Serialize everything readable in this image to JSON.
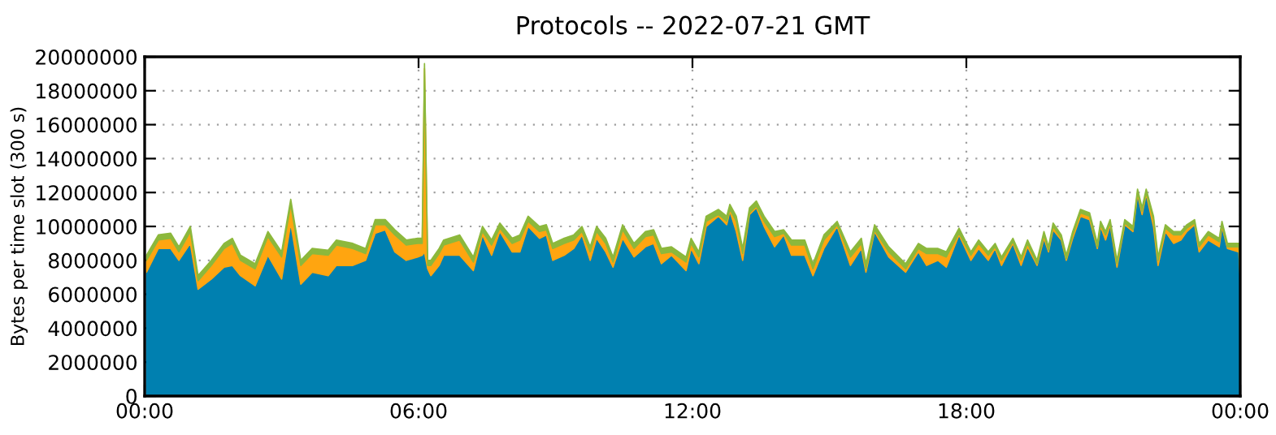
{
  "chart_data": {
    "type": "area",
    "stacked": true,
    "title": "Protocols -- 2022-07-21 GMT",
    "ylabel": "Bytes per time slot (300 s)",
    "x": [
      0.04,
      0.3,
      0.57,
      0.75,
      1.0,
      1.17,
      1.46,
      1.74,
      1.92,
      2.1,
      2.42,
      2.7,
      3.0,
      3.2,
      3.42,
      3.67,
      4.02,
      4.2,
      4.56,
      4.84,
      5.05,
      5.27,
      5.48,
      5.73,
      5.98,
      6.08,
      6.13,
      6.2,
      6.27,
      6.45,
      6.55,
      6.9,
      7.2,
      7.4,
      7.6,
      7.78,
      8.05,
      8.22,
      8.4,
      8.65,
      8.8,
      8.94,
      9.19,
      9.4,
      9.58,
      9.76,
      9.9,
      10.1,
      10.26,
      10.47,
      10.72,
      10.97,
      11.15,
      11.32,
      11.54,
      11.86,
      11.97,
      12.14,
      12.3,
      12.57,
      12.75,
      12.82,
      12.96,
      13.1,
      13.25,
      13.4,
      13.57,
      13.8,
      14.0,
      14.17,
      14.46,
      14.64,
      14.88,
      15.17,
      15.46,
      15.7,
      15.8,
      15.99,
      16.3,
      16.67,
      16.95,
      17.13,
      17.38,
      17.56,
      17.84,
      18.1,
      18.27,
      18.48,
      18.63,
      18.77,
      19.02,
      19.2,
      19.34,
      19.55,
      19.7,
      19.8,
      19.9,
      20.08,
      20.19,
      20.33,
      20.5,
      20.7,
      20.87,
      20.94,
      21.05,
      21.15,
      21.3,
      21.47,
      21.65,
      21.75,
      21.85,
      21.94,
      22.1,
      22.2,
      22.36,
      22.54,
      22.7,
      22.83,
      23.0,
      23.1,
      23.3,
      23.54,
      23.6,
      23.72,
      23.97,
      24.0
    ],
    "series": [
      {
        "color": "#0080b0",
        "values": [
          7300000,
          8700000,
          8700000,
          8000000,
          9000000,
          6300000,
          6900000,
          7600000,
          7700000,
          7100000,
          6500000,
          8300000,
          6900000,
          10200000,
          6600000,
          7300000,
          7100000,
          7700000,
          7700000,
          8000000,
          9600000,
          9800000,
          8500000,
          8000000,
          8200000,
          8300000,
          8500000,
          7500000,
          7100000,
          7700000,
          8300000,
          8300000,
          7400000,
          9500000,
          8300000,
          9700000,
          8500000,
          8500000,
          10000000,
          9300000,
          9500000,
          8000000,
          8300000,
          8700000,
          9500000,
          8000000,
          9300000,
          8500000,
          7600000,
          9300000,
          8200000,
          8800000,
          9000000,
          7800000,
          8300000,
          7400000,
          8700000,
          7800000,
          10000000,
          10600000,
          10100000,
          10900000,
          9700000,
          8000000,
          10700000,
          11100000,
          10000000,
          8800000,
          9500000,
          8300000,
          8300000,
          7100000,
          8700000,
          10000000,
          7700000,
          8700000,
          7300000,
          9700000,
          8200000,
          7300000,
          8500000,
          7700000,
          8000000,
          7600000,
          9500000,
          8000000,
          8700000,
          8000000,
          8700000,
          7700000,
          9000000,
          7700000,
          8800000,
          7700000,
          9300000,
          8500000,
          9800000,
          9200000,
          8000000,
          9300000,
          10600000,
          10400000,
          8700000,
          10000000,
          9200000,
          10100000,
          7600000,
          10100000,
          9700000,
          11900000,
          10700000,
          11900000,
          10000000,
          7700000,
          9700000,
          9000000,
          9200000,
          9700000,
          10100000,
          8500000,
          9200000,
          8800000,
          10000000,
          8700000,
          8500000,
          7000000
        ]
      },
      {
        "color": "#ffa510",
        "values": [
          700000,
          500000,
          600000,
          500000,
          700000,
          500000,
          800000,
          1100000,
          1300000,
          900000,
          1000000,
          1100000,
          1300000,
          1100000,
          1100000,
          1100000,
          1200000,
          1200000,
          1000000,
          400000,
          500000,
          300000,
          1000000,
          900000,
          800000,
          700000,
          10800000,
          200000,
          600000,
          700000,
          600000,
          900000,
          500000,
          200000,
          600000,
          200000,
          500000,
          700000,
          300000,
          400000,
          300000,
          700000,
          700000,
          500000,
          200000,
          500000,
          400000,
          500000,
          300000,
          500000,
          500000,
          600000,
          500000,
          600000,
          200000,
          500000,
          300000,
          400000,
          300000,
          100000,
          200000,
          100000,
          600000,
          400000,
          100000,
          100000,
          300000,
          600000,
          100000,
          600000,
          600000,
          400000,
          500000,
          100000,
          500000,
          300000,
          200000,
          100000,
          300000,
          200000,
          200000,
          700000,
          400000,
          600000,
          100000,
          300000,
          300000,
          300000,
          100000,
          300000,
          100000,
          300000,
          200000,
          100000,
          200000,
          100000,
          200000,
          100000,
          100000,
          200000,
          200000,
          200000,
          100000,
          100000,
          300000,
          100000,
          200000,
          100000,
          100000,
          100000,
          200000,
          100000,
          400000,
          300000,
          200000,
          500000,
          300000,
          200000,
          100000,
          300000,
          300000,
          300000,
          100000,
          100000,
          300000,
          300000
        ]
      },
      {
        "color": "#8cb83c",
        "values": [
          300000,
          300000,
          300000,
          300000,
          300000,
          300000,
          300000,
          300000,
          300000,
          300000,
          300000,
          300000,
          300000,
          300000,
          300000,
          300000,
          300000,
          300000,
          300000,
          300000,
          300000,
          300000,
          300000,
          300000,
          300000,
          300000,
          300000,
          300000,
          300000,
          300000,
          300000,
          300000,
          300000,
          300000,
          300000,
          300000,
          300000,
          300000,
          300000,
          300000,
          300000,
          300000,
          300000,
          300000,
          300000,
          300000,
          300000,
          300000,
          300000,
          300000,
          300000,
          300000,
          300000,
          300000,
          300000,
          300000,
          300000,
          300000,
          300000,
          300000,
          300000,
          300000,
          300000,
          300000,
          300000,
          300000,
          300000,
          300000,
          200000,
          300000,
          300000,
          300000,
          300000,
          200000,
          300000,
          300000,
          300000,
          300000,
          300000,
          300000,
          300000,
          300000,
          300000,
          300000,
          300000,
          200000,
          200000,
          200000,
          200000,
          200000,
          200000,
          200000,
          200000,
          200000,
          200000,
          200000,
          200000,
          200000,
          200000,
          200000,
          200000,
          200000,
          200000,
          200000,
          200000,
          200000,
          200000,
          200000,
          200000,
          200000,
          200000,
          200000,
          200000,
          200000,
          200000,
          200000,
          200000,
          200000,
          200000,
          200000,
          200000,
          200000,
          200000,
          200000,
          200000,
          300000
        ]
      }
    ],
    "xlim": [
      0,
      24
    ],
    "xticks": [
      {
        "value": 0,
        "label": "00:00"
      },
      {
        "value": 6,
        "label": "06:00"
      },
      {
        "value": 12,
        "label": "12:00"
      },
      {
        "value": 18,
        "label": "18:00"
      },
      {
        "value": 24,
        "label": "00:00"
      }
    ],
    "ylim": [
      0,
      20000000
    ],
    "yticks": [
      0,
      2000000,
      4000000,
      6000000,
      8000000,
      10000000,
      12000000,
      14000000,
      16000000,
      18000000,
      20000000
    ],
    "grid": true,
    "legend": false
  }
}
